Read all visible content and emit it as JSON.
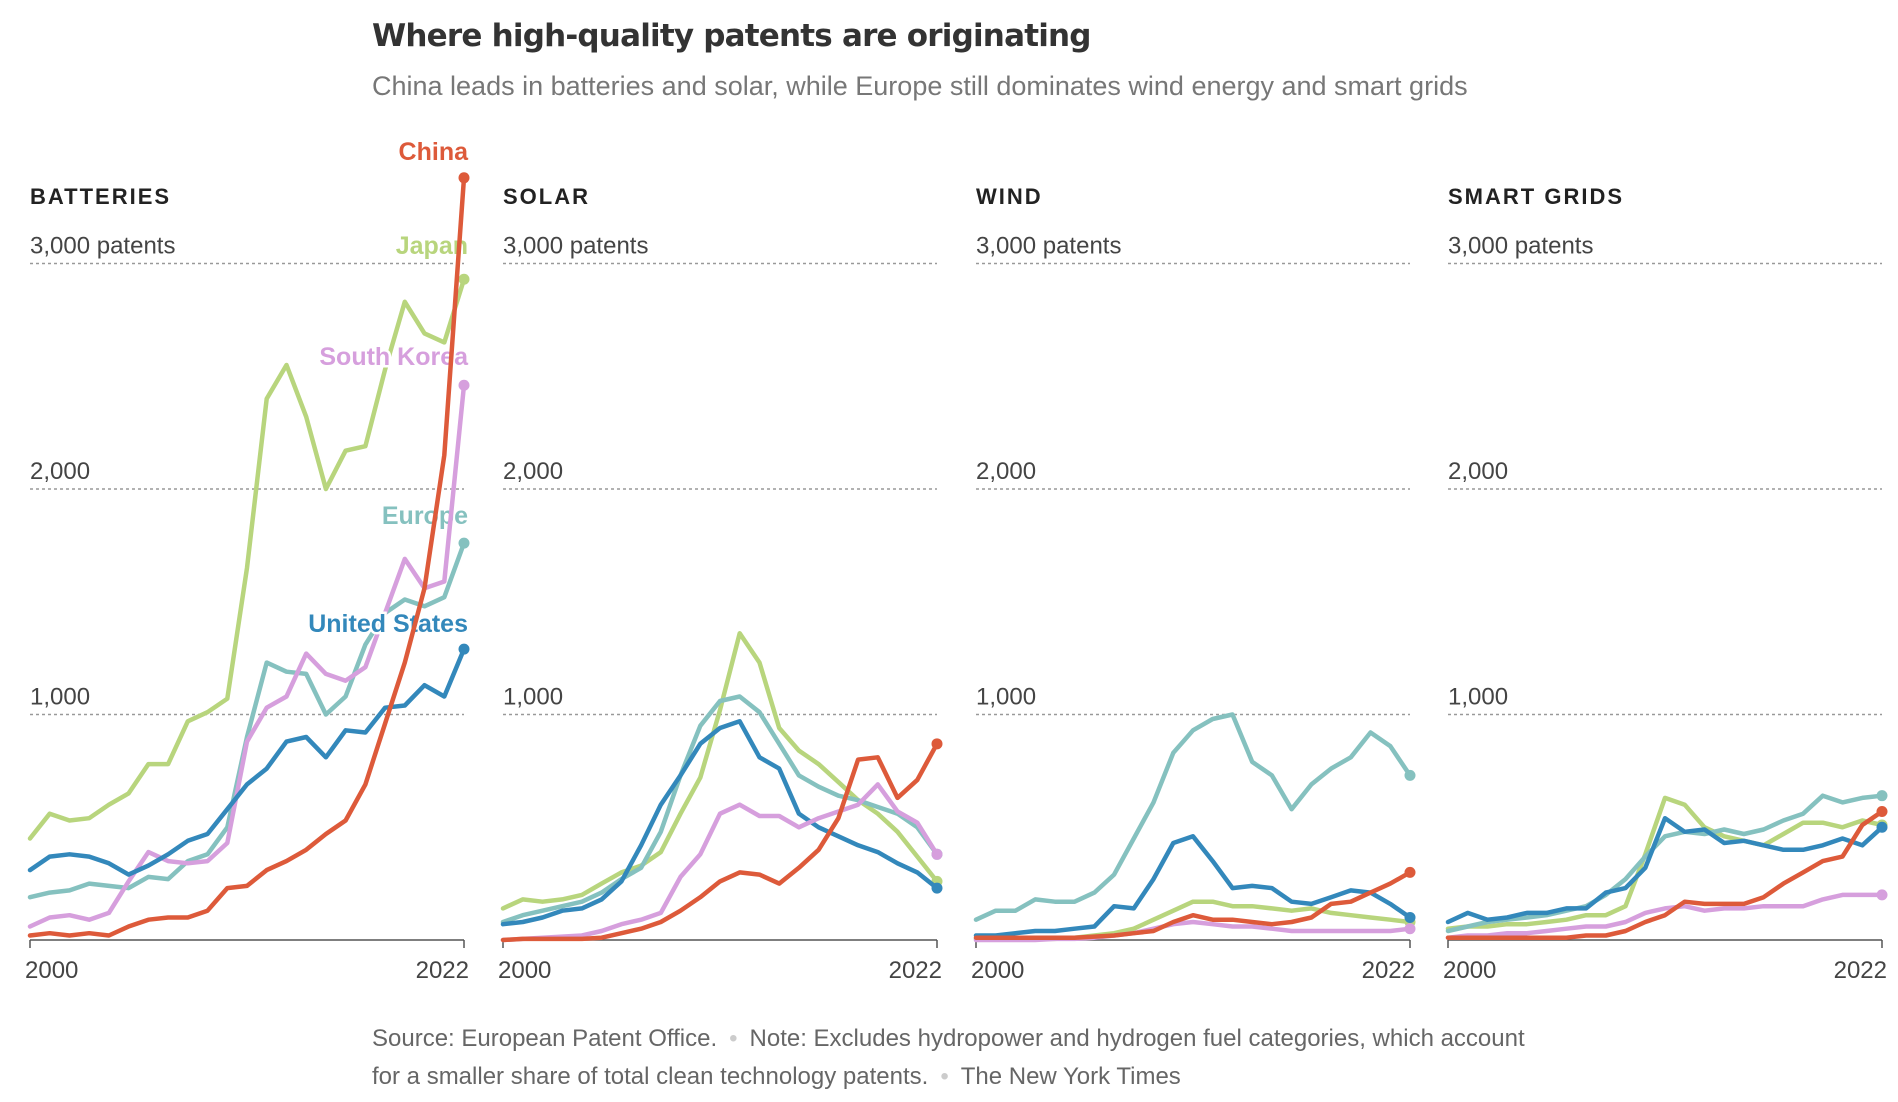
{
  "header": {
    "title": "Where high-quality patents are originating",
    "subtitle": "China leads in batteries and solar, while Europe still dominates wind energy and smart grids"
  },
  "footer": {
    "source": "Source: European Patent Office.",
    "note_line1": "Note: Excludes hydropower and hydrogen fuel categories, which account",
    "note_line2": "for a smaller share of total clean technology patents.",
    "credit": "The New York Times"
  },
  "colors": {
    "China": "#dd5a3a",
    "Japan": "#b8d57d",
    "South Korea": "#d69fdd",
    "Europe": "#85c1bf",
    "United States": "#3388bb"
  },
  "chart_data": [
    {
      "type": "line",
      "title": "BATTERIES",
      "tick_suffix": "patents",
      "ylim": [
        0,
        3000
      ],
      "yticks": [
        "1,000",
        "2,000",
        "3,000"
      ],
      "xticks": [
        "2000",
        "2022"
      ],
      "x": [
        2000,
        2001,
        2002,
        2003,
        2004,
        2005,
        2006,
        2007,
        2008,
        2009,
        2010,
        2011,
        2012,
        2013,
        2014,
        2015,
        2016,
        2017,
        2018,
        2019,
        2020,
        2021,
        2022
      ],
      "series": [
        {
          "name": "Japan",
          "label": "Japan",
          "values": [
            450,
            560,
            530,
            540,
            600,
            650,
            780,
            780,
            970,
            1010,
            1070,
            1650,
            2400,
            2550,
            2320,
            2000,
            2170,
            2190,
            2530,
            2830,
            2690,
            2650,
            2930
          ]
        },
        {
          "name": "Europe",
          "label": "Europe",
          "values": [
            190,
            210,
            220,
            250,
            240,
            230,
            280,
            270,
            350,
            380,
            500,
            900,
            1230,
            1190,
            1180,
            1000,
            1080,
            1310,
            1450,
            1510,
            1480,
            1520,
            1760
          ]
        },
        {
          "name": "South Korea",
          "label": "South Korea",
          "values": [
            60,
            100,
            110,
            90,
            120,
            260,
            390,
            350,
            340,
            350,
            430,
            880,
            1030,
            1080,
            1270,
            1180,
            1150,
            1210,
            1450,
            1690,
            1560,
            1590,
            2460
          ]
        },
        {
          "name": "United States",
          "label": "United States",
          "values": [
            310,
            370,
            380,
            370,
            340,
            290,
            330,
            380,
            440,
            470,
            580,
            690,
            760,
            880,
            900,
            810,
            930,
            920,
            1030,
            1040,
            1130,
            1080,
            1290
          ]
        },
        {
          "name": "China",
          "label": "China",
          "values": [
            20,
            30,
            20,
            30,
            20,
            60,
            90,
            100,
            100,
            130,
            230,
            240,
            310,
            350,
            400,
            470,
            530,
            690,
            960,
            1230,
            1560,
            2150,
            3380
          ]
        }
      ]
    },
    {
      "type": "line",
      "title": "SOLAR",
      "tick_suffix": "patents",
      "ylim": [
        0,
        3000
      ],
      "yticks": [
        "1,000",
        "2,000",
        "3,000"
      ],
      "xticks": [
        "2000",
        "2022"
      ],
      "x": [
        2000,
        2001,
        2002,
        2003,
        2004,
        2005,
        2006,
        2007,
        2008,
        2009,
        2010,
        2011,
        2012,
        2013,
        2014,
        2015,
        2016,
        2017,
        2018,
        2019,
        2020,
        2021,
        2022
      ],
      "series": [
        {
          "name": "Japan",
          "values": [
            140,
            180,
            170,
            180,
            200,
            250,
            300,
            330,
            390,
            560,
            720,
            1020,
            1360,
            1230,
            940,
            840,
            780,
            700,
            620,
            560,
            480,
            370,
            260
          ]
        },
        {
          "name": "Europe",
          "values": [
            80,
            110,
            130,
            150,
            170,
            210,
            270,
            320,
            480,
            730,
            950,
            1060,
            1080,
            1010,
            870,
            730,
            680,
            640,
            620,
            590,
            560,
            500,
            380
          ]
        },
        {
          "name": "United States",
          "values": [
            70,
            80,
            100,
            130,
            140,
            180,
            260,
            420,
            600,
            730,
            870,
            940,
            970,
            810,
            760,
            560,
            500,
            460,
            420,
            390,
            340,
            300,
            230
          ]
        },
        {
          "name": "South Korea",
          "values": [
            0,
            5,
            10,
            15,
            20,
            40,
            70,
            90,
            120,
            280,
            380,
            560,
            600,
            550,
            550,
            500,
            540,
            570,
            600,
            690,
            570,
            520,
            380
          ]
        },
        {
          "name": "China",
          "values": [
            0,
            5,
            5,
            5,
            5,
            10,
            30,
            50,
            80,
            130,
            190,
            260,
            300,
            290,
            250,
            320,
            400,
            540,
            800,
            810,
            630,
            710,
            870
          ]
        }
      ]
    },
    {
      "type": "line",
      "title": "WIND",
      "tick_suffix": "patents",
      "ylim": [
        0,
        3000
      ],
      "yticks": [
        "1,000",
        "2,000",
        "3,000"
      ],
      "xticks": [
        "2000",
        "2022"
      ],
      "x": [
        2000,
        2001,
        2002,
        2003,
        2004,
        2005,
        2006,
        2007,
        2008,
        2009,
        2010,
        2011,
        2012,
        2013,
        2014,
        2015,
        2016,
        2017,
        2018,
        2019,
        2020,
        2021,
        2022
      ],
      "series": [
        {
          "name": "Europe",
          "values": [
            90,
            130,
            130,
            180,
            170,
            170,
            210,
            290,
            450,
            610,
            830,
            930,
            980,
            1000,
            790,
            730,
            580,
            690,
            760,
            810,
            920,
            860,
            730
          ]
        },
        {
          "name": "Japan",
          "values": [
            5,
            5,
            5,
            5,
            5,
            10,
            20,
            30,
            50,
            90,
            130,
            170,
            170,
            150,
            150,
            140,
            130,
            140,
            120,
            110,
            100,
            90,
            80
          ]
        },
        {
          "name": "South Korea",
          "values": [
            0,
            0,
            0,
            0,
            5,
            5,
            10,
            20,
            30,
            50,
            70,
            80,
            70,
            60,
            60,
            50,
            40,
            40,
            40,
            40,
            40,
            40,
            50
          ]
        },
        {
          "name": "United States",
          "values": [
            20,
            20,
            30,
            40,
            40,
            50,
            60,
            150,
            140,
            270,
            430,
            460,
            350,
            230,
            240,
            230,
            170,
            160,
            190,
            220,
            210,
            160,
            100
          ]
        },
        {
          "name": "China",
          "values": [
            10,
            10,
            10,
            10,
            10,
            10,
            15,
            20,
            30,
            40,
            80,
            110,
            90,
            90,
            80,
            70,
            80,
            100,
            160,
            170,
            210,
            250,
            300
          ]
        }
      ]
    },
    {
      "type": "line",
      "title": "SMART GRIDS",
      "tick_suffix": "patents",
      "ylim": [
        0,
        3000
      ],
      "yticks": [
        "1,000",
        "2,000",
        "3,000"
      ],
      "xticks": [
        "2000",
        "2022"
      ],
      "x": [
        2000,
        2001,
        2002,
        2003,
        2004,
        2005,
        2006,
        2007,
        2008,
        2009,
        2010,
        2011,
        2012,
        2013,
        2014,
        2015,
        2016,
        2017,
        2018,
        2019,
        2020,
        2021,
        2022
      ],
      "series": [
        {
          "name": "South Korea",
          "values": [
            10,
            20,
            20,
            30,
            30,
            40,
            50,
            60,
            60,
            80,
            120,
            140,
            150,
            130,
            140,
            140,
            150,
            150,
            150,
            180,
            200,
            200,
            200
          ]
        },
        {
          "name": "Japan",
          "values": [
            50,
            60,
            60,
            70,
            70,
            80,
            90,
            110,
            110,
            150,
            380,
            630,
            600,
            500,
            460,
            440,
            420,
            470,
            520,
            520,
            500,
            530,
            510
          ]
        },
        {
          "name": "Europe",
          "values": [
            40,
            60,
            80,
            90,
            100,
            110,
            130,
            150,
            200,
            270,
            370,
            460,
            480,
            470,
            490,
            470,
            490,
            530,
            560,
            640,
            610,
            630,
            640
          ]
        },
        {
          "name": "United States",
          "values": [
            80,
            120,
            90,
            100,
            120,
            120,
            140,
            140,
            210,
            230,
            320,
            540,
            480,
            490,
            430,
            440,
            420,
            400,
            400,
            420,
            450,
            420,
            500
          ]
        },
        {
          "name": "China",
          "values": [
            10,
            10,
            10,
            10,
            10,
            10,
            10,
            20,
            20,
            40,
            80,
            110,
            170,
            160,
            160,
            160,
            190,
            250,
            300,
            350,
            370,
            510,
            570
          ]
        }
      ]
    }
  ]
}
